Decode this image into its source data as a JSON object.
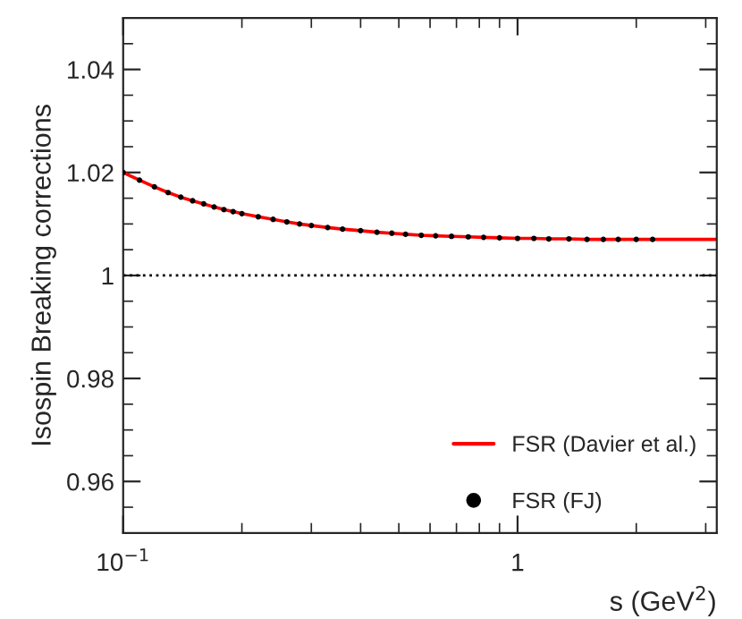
{
  "chart_data": {
    "type": "line",
    "xlabel": "s (GeV$^{2}$)",
    "ylabel": "Isospin Breaking corrections",
    "log": "x",
    "xlim": [
      0.1,
      3.2
    ],
    "xticks": [
      {
        "value": 0.1,
        "label": "10$^{−1}$"
      },
      1
    ],
    "ylim": [
      0.95,
      1.05
    ],
    "yticks": [
      0.96,
      0.98,
      1,
      1.02,
      1.04
    ],
    "grid": false,
    "legend": "lower right",
    "ref_lines": [
      {
        "axis": "y",
        "value": 1,
        "color": "#000000",
        "line_style": "dotted"
      }
    ],
    "series": [
      {
        "name": "FSR (Davier et al.)",
        "color": "#ff0000",
        "marker": "none",
        "line_style": "solid",
        "x": [
          0.1,
          0.11,
          0.12,
          0.13,
          0.14,
          0.15,
          0.16,
          0.17,
          0.18,
          0.19,
          0.2,
          0.22,
          0.24,
          0.26,
          0.28,
          0.3,
          0.33,
          0.36,
          0.4,
          0.44,
          0.48,
          0.52,
          0.57,
          0.62,
          0.68,
          0.75,
          0.82,
          0.9,
          1.0,
          1.1,
          1.2,
          1.35,
          1.5,
          1.65,
          1.8,
          2.0,
          2.2,
          3.2
        ],
        "values": [
          1.02,
          1.0185,
          1.0172,
          1.0161,
          1.0152,
          1.0145,
          1.0139,
          1.0133,
          1.0128,
          1.0124,
          1.012,
          1.0114,
          1.0109,
          1.0104,
          1.01,
          1.0097,
          1.0093,
          1.009,
          1.0087,
          1.0084,
          1.0082,
          1.008,
          1.0078,
          1.0077,
          1.0076,
          1.0075,
          1.0074,
          1.0073,
          1.0072,
          1.0072,
          1.0071,
          1.0071,
          1.007,
          1.007,
          1.007,
          1.007,
          1.007,
          1.007
        ]
      },
      {
        "name": "FSR (FJ)",
        "type": "scatter",
        "color": "#000000",
        "marker": "circle",
        "x": [
          0.1,
          0.11,
          0.12,
          0.13,
          0.14,
          0.15,
          0.16,
          0.17,
          0.18,
          0.19,
          0.2,
          0.22,
          0.24,
          0.26,
          0.28,
          0.3,
          0.33,
          0.36,
          0.4,
          0.44,
          0.48,
          0.52,
          0.57,
          0.62,
          0.68,
          0.75,
          0.82,
          0.9,
          1.0,
          1.1,
          1.2,
          1.35,
          1.5,
          1.65,
          1.8,
          2.0,
          2.2
        ],
        "values": [
          1.02,
          1.0185,
          1.0172,
          1.0161,
          1.0152,
          1.0145,
          1.0139,
          1.0133,
          1.0128,
          1.0124,
          1.012,
          1.0114,
          1.0109,
          1.0104,
          1.01,
          1.0097,
          1.0093,
          1.009,
          1.0087,
          1.0084,
          1.0082,
          1.008,
          1.0078,
          1.0077,
          1.0076,
          1.0075,
          1.0074,
          1.0073,
          1.0072,
          1.0072,
          1.0071,
          1.0071,
          1.007,
          1.007,
          1.007,
          1.007,
          1.007
        ]
      }
    ]
  }
}
